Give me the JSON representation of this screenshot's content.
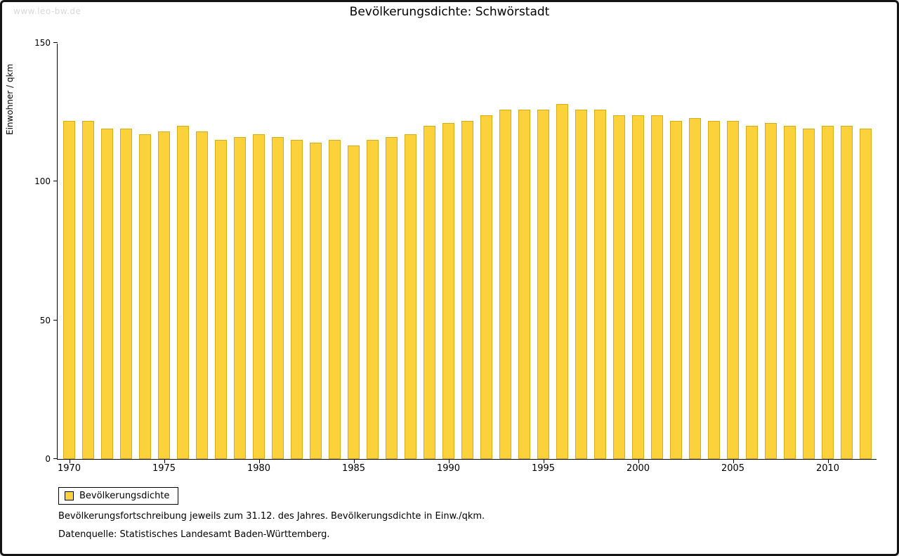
{
  "watermark": "www.leo-bw.de",
  "notes": [
    "Bevölkerungsfortschreibung jeweils zum 31.12. des Jahres. Bevölkerungsdichte in Einw./qkm.",
    "Datenquelle: Statistisches Landesamt Baden-Württemberg."
  ],
  "colors": {
    "bar_fill": "#FBD23B",
    "bar_border": "#D8AC14"
  },
  "chart_data": {
    "type": "bar",
    "title": "Bevölkerungsdichte: Schwörstadt",
    "ylabel": "Einwohner / qkm",
    "xlabel": "",
    "legend": "Bevölkerungsdichte",
    "legend_position": "bottom-left",
    "grid": false,
    "ylim": [
      0,
      150
    ],
    "y_ticks": [
      0,
      50,
      100,
      150
    ],
    "x_tick_years": [
      1970,
      1975,
      1980,
      1985,
      1990,
      1995,
      2000,
      2005,
      2010
    ],
    "categories": [
      1970,
      1971,
      1972,
      1973,
      1974,
      1975,
      1976,
      1977,
      1978,
      1979,
      1980,
      1981,
      1982,
      1983,
      1984,
      1985,
      1986,
      1987,
      1988,
      1989,
      1990,
      1991,
      1992,
      1993,
      1994,
      1995,
      1996,
      1997,
      1998,
      1999,
      2000,
      2001,
      2002,
      2003,
      2004,
      2005,
      2006,
      2007,
      2008,
      2009,
      2010,
      2011,
      2012
    ],
    "values": [
      122,
      122,
      119,
      119,
      117,
      118,
      120,
      118,
      115,
      116,
      117,
      116,
      115,
      114,
      115,
      113,
      115,
      116,
      117,
      120,
      121,
      122,
      124,
      126,
      126,
      126,
      128,
      126,
      126,
      124,
      124,
      124,
      122,
      123,
      122,
      122,
      120,
      121,
      120,
      119,
      120,
      120,
      119
    ]
  }
}
